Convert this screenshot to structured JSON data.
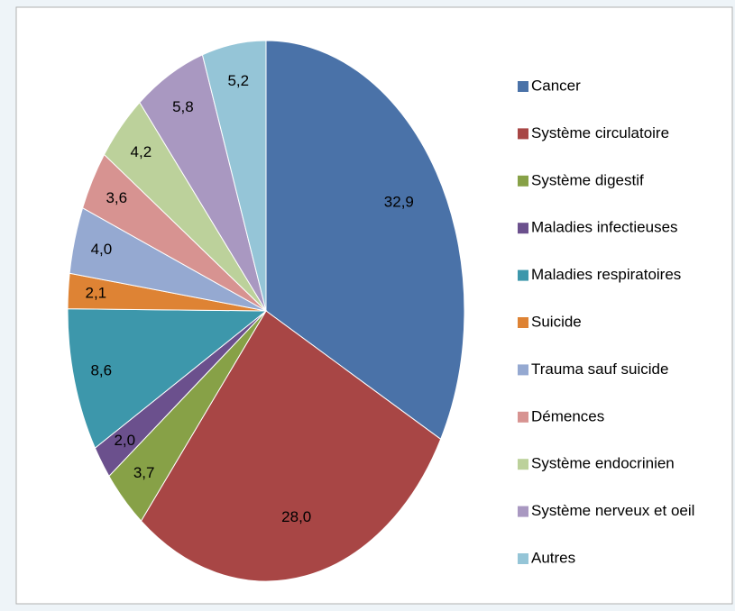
{
  "chart_data": {
    "type": "pie",
    "categories": [
      "Cancer",
      "Système circulatoire",
      "Système digestif",
      "Maladies infectieuses",
      "Maladies respiratoires",
      "Suicide",
      "Trauma sauf suicide",
      "Démences",
      "Système endocrinien",
      "Système nerveux  et oeil",
      "Autres"
    ],
    "values": [
      32.9,
      28.0,
      3.7,
      2.0,
      8.6,
      2.1,
      4.0,
      3.6,
      4.2,
      5.8,
      5.2
    ],
    "value_labels": [
      "32,9",
      "28,0",
      "3,7",
      "2,0",
      "8,6",
      "2,1",
      "4,0",
      "3,6",
      "4,2",
      "5,8",
      "5,2"
    ],
    "colors": [
      "#4a72a8",
      "#a84645",
      "#87a147",
      "#6b508d",
      "#3d97ab",
      "#de8334",
      "#95a9d1",
      "#d79391",
      "#bcd19b",
      "#a998c1",
      "#95c5d7"
    ],
    "legend": "right"
  }
}
